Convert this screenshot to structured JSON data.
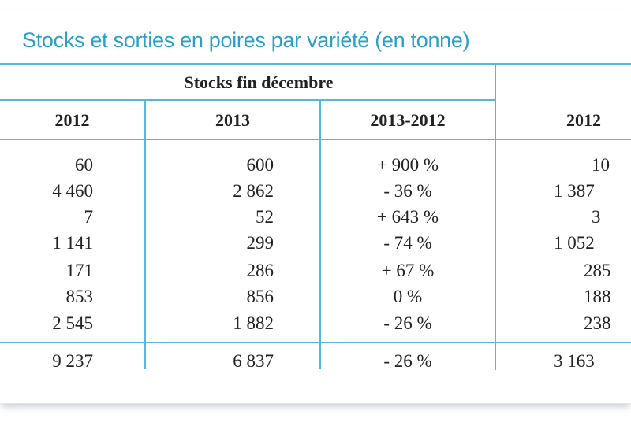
{
  "title": "Stocks et sorties en poires par variété (en tonne)",
  "group_header": "Stocks fin décembre",
  "columns": [
    "2012",
    "2013",
    "2013-2012",
    "2012"
  ],
  "rows": [
    {
      "c2012": "60",
      "c2013": "600",
      "diff": "+ 900 %",
      "next": "10"
    },
    {
      "c2012": "4 460",
      "c2013": "2 862",
      "diff": "- 36 %",
      "next": "1 387"
    },
    {
      "c2012": "7",
      "c2013": "52",
      "diff": "+ 643 %",
      "next": "3"
    },
    {
      "c2012": "1 141",
      "c2013": "299",
      "diff": "- 74 %",
      "next": "1 052"
    },
    {
      "c2012": "171",
      "c2013": "286",
      "diff": "+ 67 %",
      "next": "285"
    },
    {
      "c2012": "853",
      "c2013": "856",
      "diff": "0 %",
      "next": "188"
    },
    {
      "c2012": "2 545",
      "c2013": "1 882",
      "diff": "- 26 %",
      "next": "238"
    }
  ],
  "total": {
    "c2012": "9 237",
    "c2013": "6 837",
    "diff": "- 26 %",
    "next": "3 163"
  },
  "colors": {
    "accent": "#2a9fc9",
    "rule": "#57b8de"
  }
}
